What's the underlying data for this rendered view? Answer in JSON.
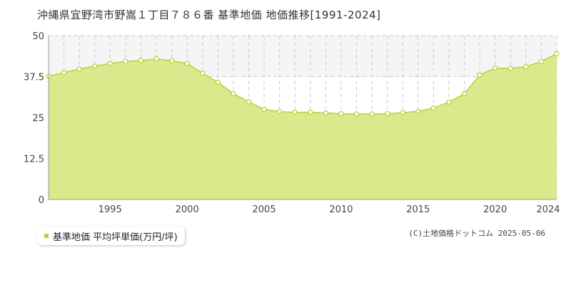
{
  "chart_data": {
    "type": "area",
    "title": "沖縄県宜野湾市野嵩１丁目７８６番 基準地価 地価推移[1991-2024]",
    "xlabel": "",
    "ylabel": "",
    "xlim": [
      1991,
      2024
    ],
    "ylim": [
      0,
      50
    ],
    "yticks": [
      0,
      12.5,
      25,
      37.5,
      50
    ],
    "ytick_labels": [
      "0",
      "12.5",
      "25",
      "37.5",
      "50"
    ],
    "xticks": [
      1995,
      2000,
      2005,
      2010,
      2015,
      2020,
      2024
    ],
    "xtick_labels": [
      "1995",
      "2000",
      "2005",
      "2010",
      "2015",
      "2020",
      "2024"
    ],
    "grid": true,
    "legend_position": "bottom-left",
    "colors": {
      "fill": "#d9ea8c",
      "line": "#b5d33c",
      "marker_fill": "#ffffff",
      "band": "#f5f5f5",
      "grid": "#cccccc"
    },
    "x": [
      1991,
      1992,
      1993,
      1994,
      1995,
      1996,
      1997,
      1998,
      1999,
      2000,
      2001,
      2002,
      2003,
      2004,
      2005,
      2006,
      2007,
      2008,
      2009,
      2010,
      2011,
      2012,
      2013,
      2014,
      2015,
      2016,
      2017,
      2018,
      2019,
      2020,
      2021,
      2022,
      2023,
      2024
    ],
    "series": [
      {
        "name": "基準地価 平均坪単価(万円/坪)",
        "values": [
          37.6,
          38.7,
          39.8,
          40.7,
          41.5,
          42.1,
          42.4,
          42.9,
          42.3,
          41.5,
          38.5,
          35.8,
          32.3,
          29.8,
          27.5,
          26.8,
          26.6,
          26.6,
          26.4,
          26.2,
          26.1,
          26.1,
          26.2,
          26.5,
          26.9,
          27.9,
          29.7,
          32.3,
          38.0,
          40.1,
          40.0,
          40.5,
          42.1,
          44.5
        ]
      }
    ]
  },
  "legend": {
    "label": "基準地価 平均坪単価(万円/坪)"
  },
  "copyright": "(C)土地価格ドットコム 2025-05-06"
}
